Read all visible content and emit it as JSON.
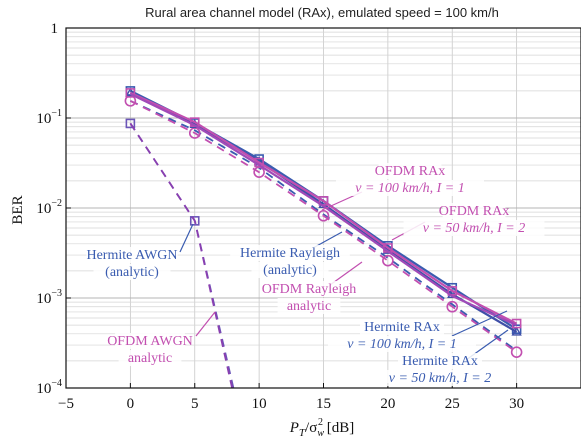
{
  "chart_data": {
    "type": "line",
    "title": "Rural area channel model (RAx), emulated speed = 100 km/h",
    "xlabel": "P_T/σ_w^2 [dB]",
    "xlabel_main": "P",
    "xlabel_sub1": "T",
    "xlabel_mid": "/σ",
    "xlabel_sub2": "w",
    "xlabel_sup2": "2",
    "xlabel_unit": " [dB]",
    "ylabel": "BER",
    "xlim": [
      -5,
      35
    ],
    "ylim": [
      0.0001,
      1
    ],
    "yscale": "log",
    "grid": true,
    "x_ticks": [
      -5,
      0,
      5,
      10,
      15,
      20,
      25,
      30
    ],
    "x_tick_labels": [
      "−5",
      "0",
      "5",
      "10",
      "15",
      "20",
      "25",
      "30"
    ],
    "y_ticks": [
      1,
      0.1,
      0.01,
      0.001,
      0.0001
    ],
    "y_tick_labels": [
      {
        "base": "1",
        "exp": ""
      },
      {
        "base": "10",
        "exp": "−1"
      },
      {
        "base": "10",
        "exp": "−2"
      },
      {
        "base": "10",
        "exp": "−3"
      },
      {
        "base": "10",
        "exp": "−4"
      }
    ],
    "series": [
      {
        "id": "hermite_awgn",
        "style": "dashed",
        "marker": "square",
        "color": "#6b55b8",
        "x": [
          0,
          5,
          8
        ],
        "y": [
          0.087,
          0.0072,
          0.0001
        ]
      },
      {
        "id": "ofdm_awgn",
        "style": "dashed",
        "marker": "none",
        "color": "#8a3fb0",
        "x": [
          0,
          5,
          7.9
        ],
        "y": [
          0.087,
          0.0072,
          0.0001
        ]
      },
      {
        "id": "hermite_rayleigh",
        "style": "dashed",
        "marker": "none",
        "color": "#3a5cb0",
        "x": [
          0,
          5,
          10,
          15,
          20,
          25,
          30
        ],
        "y": [
          0.155,
          0.073,
          0.028,
          0.0085,
          0.0028,
          0.00085,
          0.00026
        ]
      },
      {
        "id": "ofdm_rayleigh",
        "style": "dashed",
        "marker": "circle",
        "color": "#c24fb0",
        "x": [
          0,
          5,
          10,
          15,
          20,
          25,
          30
        ],
        "y": [
          0.155,
          0.068,
          0.025,
          0.0082,
          0.0026,
          0.0008,
          0.00025
        ]
      },
      {
        "id": "hermite_rax_v100_i1",
        "style": "solid",
        "marker": "square",
        "color": "#3a5cb0",
        "x": [
          0,
          5,
          10,
          15,
          20,
          25,
          30
        ],
        "y": [
          0.2,
          0.088,
          0.035,
          0.012,
          0.0038,
          0.0013,
          0.00045
        ]
      },
      {
        "id": "hermite_rax_v50_i2",
        "style": "solid",
        "marker": "triangle",
        "color": "#3f4fa8",
        "x": [
          0,
          5,
          10,
          15,
          20,
          25,
          30
        ],
        "y": [
          0.19,
          0.085,
          0.033,
          0.011,
          0.0034,
          0.0011,
          0.00042
        ]
      },
      {
        "id": "ofdm_rax_v100_i1",
        "style": "solid",
        "marker": "square",
        "color": "#c24fb0",
        "x": [
          0,
          5,
          10,
          15,
          20,
          25,
          30
        ],
        "y": [
          0.19,
          0.09,
          0.032,
          0.012,
          0.0036,
          0.0012,
          0.00052
        ]
      },
      {
        "id": "ofdm_rax_v50_i2",
        "style": "solid",
        "marker": "none",
        "color": "#a04ab8",
        "x": [
          0,
          5,
          10,
          15,
          20,
          25,
          30
        ],
        "y": [
          0.185,
          0.083,
          0.03,
          0.0105,
          0.0033,
          0.00105,
          0.0005
        ]
      }
    ],
    "annotations": [
      {
        "id": "ofdm_rax_100",
        "lines": [
          "OFDM RAx",
          "v = 100 km/h,  I = 1"
        ],
        "color": "#c24fb0"
      },
      {
        "id": "ofdm_rax_50",
        "lines": [
          "OFDM RAx",
          "v = 50 km/h,  I = 2"
        ],
        "color": "#c24fb0"
      },
      {
        "id": "hermite_awgn",
        "lines": [
          "Hermite AWGN",
          "(analytic)"
        ],
        "color": "#3a5cb0"
      },
      {
        "id": "hermite_rayleigh",
        "lines": [
          "Hermite Rayleigh",
          "(analytic)"
        ],
        "color": "#3a5cb0"
      },
      {
        "id": "ofdm_rayleigh",
        "lines": [
          "OFDM Rayleigh",
          "analytic"
        ],
        "color": "#c24fb0"
      },
      {
        "id": "ofdm_awgn",
        "lines": [
          "OFDM AWGN",
          "analytic"
        ],
        "color": "#c24fb0"
      },
      {
        "id": "hermite_rax_100",
        "lines": [
          "Hermite RAx",
          "v = 100 km/h,  I = 1"
        ],
        "color": "#3a5cb0"
      },
      {
        "id": "hermite_rax_50",
        "lines": [
          "Hermite RAx",
          "v = 50 km/h,  I = 2"
        ],
        "color": "#3a5cb0"
      }
    ]
  }
}
